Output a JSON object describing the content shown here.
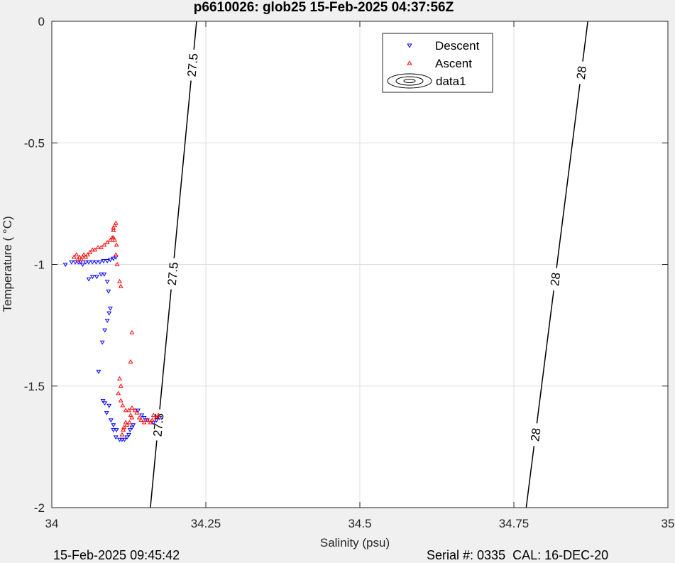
{
  "footer": {
    "left": "15-Feb-2025 09:45:42",
    "right": "Serial #: 0335  CAL: 16-DEC-20"
  },
  "chart_data": {
    "type": "scatter",
    "title": "p6610026: glob25 15-Feb-2025 04:37:56Z",
    "xlabel": "Salinity (psu)",
    "ylabel": "Temperature (   °C)",
    "xlim": [
      34,
      35
    ],
    "ylim": [
      -2,
      0
    ],
    "xticks": [
      34,
      34.25,
      34.5,
      34.75,
      35
    ],
    "xtick_labels": [
      "34",
      "34.25",
      "34.5",
      "34.75",
      "35"
    ],
    "yticks": [
      -2,
      -1.5,
      -1,
      -0.5,
      0
    ],
    "ytick_labels": [
      "-2",
      "-1.5",
      "-1",
      "-0.5",
      "0"
    ],
    "grid": true,
    "legend_position": "top-right",
    "legend": [
      "Descent",
      "Ascent",
      "data1"
    ],
    "colors": {
      "descent": "#0000ff",
      "ascent": "#ff0000",
      "contour": "#000000",
      "grid": "#dedede",
      "axes_bg": "#ffffff",
      "figure_bg": "#f0f0f0"
    },
    "contours": [
      {
        "level": "27.5",
        "points": [
          [
            34.16,
            -2.0
          ],
          [
            34.235,
            0.0
          ]
        ],
        "labels": [
          {
            "text": "27.5",
            "s": 34.173,
            "t": -1.66
          },
          {
            "text": "27.5",
            "s": 34.203,
            "t": -1.04
          },
          {
            "text": "27.5",
            "s": 34.228,
            "t": -0.18
          }
        ]
      },
      {
        "level": "28",
        "points": [
          [
            34.77,
            -2.0
          ],
          [
            34.87,
            0.0
          ]
        ],
        "labels": [
          {
            "text": "28",
            "s": 34.785,
            "t": -1.7
          },
          {
            "text": "28",
            "s": 34.815,
            "t": -1.06
          },
          {
            "text": "28",
            "s": 34.855,
            "t": -0.21
          }
        ]
      }
    ],
    "series": [
      {
        "name": "Descent",
        "marker": "triangle-down",
        "points": [
          [
            34.022,
            -1.0
          ],
          [
            34.032,
            -0.99
          ],
          [
            34.038,
            -0.99
          ],
          [
            34.043,
            -0.99
          ],
          [
            34.046,
            -0.99
          ],
          [
            34.05,
            -1.0
          ],
          [
            34.055,
            -0.99
          ],
          [
            34.06,
            -0.99
          ],
          [
            34.066,
            -0.99
          ],
          [
            34.072,
            -0.99
          ],
          [
            34.078,
            -0.99
          ],
          [
            34.084,
            -0.985
          ],
          [
            34.09,
            -0.985
          ],
          [
            34.095,
            -0.98
          ],
          [
            34.1,
            -0.975
          ],
          [
            34.104,
            -0.97
          ],
          [
            34.06,
            -1.06
          ],
          [
            34.066,
            -1.05
          ],
          [
            34.073,
            -1.05
          ],
          [
            34.08,
            -1.04
          ],
          [
            34.085,
            -1.04
          ],
          [
            34.09,
            -1.07
          ],
          [
            34.092,
            -1.11
          ],
          [
            34.095,
            -1.18
          ],
          [
            34.093,
            -1.2
          ],
          [
            34.09,
            -1.23
          ],
          [
            34.086,
            -1.27
          ],
          [
            34.082,
            -1.32
          ],
          [
            34.076,
            -1.44
          ],
          [
            34.083,
            -1.56
          ],
          [
            34.086,
            -1.57
          ],
          [
            34.093,
            -1.58
          ],
          [
            34.089,
            -1.61
          ],
          [
            34.096,
            -1.64
          ],
          [
            34.1,
            -1.66
          ],
          [
            34.1,
            -1.68
          ],
          [
            34.105,
            -1.68
          ],
          [
            34.104,
            -1.71
          ],
          [
            34.11,
            -1.72
          ],
          [
            34.114,
            -1.72
          ],
          [
            34.118,
            -1.72
          ],
          [
            34.122,
            -1.71
          ],
          [
            34.125,
            -1.7
          ],
          [
            34.127,
            -1.68
          ],
          [
            34.13,
            -1.67
          ],
          [
            34.132,
            -1.66
          ],
          [
            34.14,
            -1.6
          ],
          [
            34.146,
            -1.62
          ],
          [
            34.15,
            -1.63
          ],
          [
            34.155,
            -1.64
          ],
          [
            34.165,
            -1.65
          ],
          [
            34.17,
            -1.64
          ],
          [
            34.175,
            -1.63
          ]
        ]
      },
      {
        "name": "Ascent",
        "marker": "triangle-up",
        "points": [
          [
            34.036,
            -0.97
          ],
          [
            34.04,
            -0.96
          ],
          [
            34.042,
            -0.98
          ],
          [
            34.045,
            -0.97
          ],
          [
            34.048,
            -0.98
          ],
          [
            34.05,
            -0.97
          ],
          [
            34.052,
            -0.96
          ],
          [
            34.055,
            -0.97
          ],
          [
            34.058,
            -0.96
          ],
          [
            34.062,
            -0.95
          ],
          [
            34.066,
            -0.94
          ],
          [
            34.07,
            -0.94
          ],
          [
            34.075,
            -0.93
          ],
          [
            34.08,
            -0.93
          ],
          [
            34.085,
            -0.92
          ],
          [
            34.09,
            -0.91
          ],
          [
            34.095,
            -0.9
          ],
          [
            34.098,
            -0.89
          ],
          [
            34.1,
            -0.89
          ],
          [
            34.1,
            -0.86
          ],
          [
            34.102,
            -0.84
          ],
          [
            34.104,
            -0.83
          ],
          [
            34.1,
            -0.85
          ],
          [
            34.102,
            -0.9
          ],
          [
            34.105,
            -0.92
          ],
          [
            34.104,
            -0.96
          ],
          [
            34.106,
            -1.0
          ],
          [
            34.11,
            -1.07
          ],
          [
            34.112,
            -1.09
          ],
          [
            34.13,
            -1.28
          ],
          [
            34.128,
            -1.4
          ],
          [
            34.11,
            -1.47
          ],
          [
            34.112,
            -1.5
          ],
          [
            34.108,
            -1.53
          ],
          [
            34.112,
            -1.56
          ],
          [
            34.115,
            -1.58
          ],
          [
            34.12,
            -1.6
          ],
          [
            34.125,
            -1.6
          ],
          [
            34.13,
            -1.59
          ],
          [
            34.135,
            -1.6
          ],
          [
            34.128,
            -1.62
          ],
          [
            34.138,
            -1.61
          ],
          [
            34.142,
            -1.63
          ],
          [
            34.145,
            -1.64
          ],
          [
            34.15,
            -1.65
          ],
          [
            34.155,
            -1.64
          ],
          [
            34.16,
            -1.65
          ],
          [
            34.163,
            -1.64
          ],
          [
            34.165,
            -1.62
          ],
          [
            34.17,
            -1.63
          ],
          [
            34.173,
            -1.62
          ],
          [
            34.12,
            -1.65
          ],
          [
            34.117,
            -1.67
          ],
          [
            34.114,
            -1.7
          ],
          [
            34.116,
            -1.68
          ],
          [
            34.122,
            -1.66
          ],
          [
            34.126,
            -1.65
          ],
          [
            34.13,
            -1.63
          ]
        ]
      }
    ]
  }
}
